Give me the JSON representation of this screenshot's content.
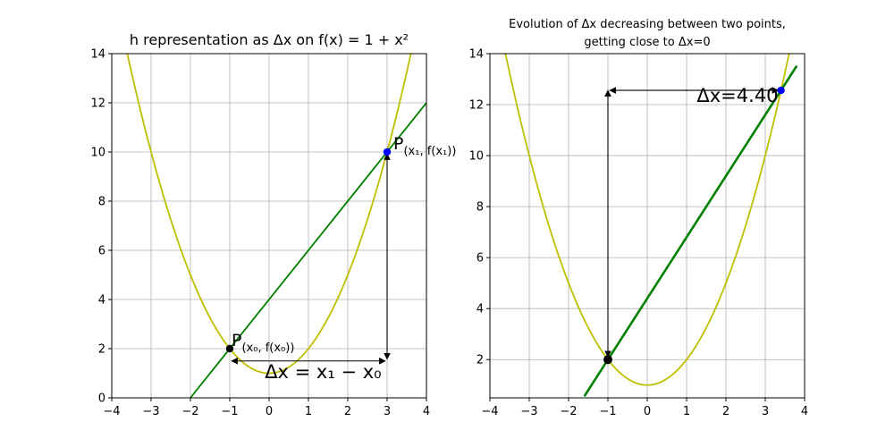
{
  "chart_data": [
    {
      "type": "line",
      "title": "h representation as Δx on f(x) = 1 + x²",
      "xlim": [
        -4,
        4
      ],
      "ylim": [
        0,
        14
      ],
      "xticks": [
        -4,
        -3,
        -2,
        -1,
        0,
        1,
        2,
        3,
        4
      ],
      "yticks": [
        0,
        2,
        4,
        6,
        8,
        10,
        12,
        14
      ],
      "grid": true,
      "series": [
        {
          "name": "",
          "kind": "function",
          "expr": "1 + x^2",
          "color": "#bfbf00"
        },
        {
          "name": "",
          "kind": "secant",
          "x": [
            -2,
            4
          ],
          "y": [
            0,
            12
          ],
          "color": "#008000"
        }
      ],
      "points": [
        {
          "x": -1,
          "y": 2,
          "color": "#000000",
          "label": "P",
          "sub": "(x₀, f(x₀))"
        },
        {
          "x": 3,
          "y": 10,
          "color": "#0000ff",
          "label": "P",
          "sub": "(x₁, f(x₁))"
        }
      ],
      "annotations": [
        {
          "text": "Δx = x₁ − x₀",
          "x": 0.8,
          "y": 0.8
        }
      ]
    },
    {
      "type": "line",
      "title": "Evolution of Δx decreasing between two points,",
      "subtitle": "getting close to Δx=0",
      "xlim": [
        -4,
        4
      ],
      "ylim": [
        0.5,
        14
      ],
      "xticks": [
        -4,
        -3,
        -2,
        -1,
        0,
        1,
        2,
        3,
        4
      ],
      "yticks": [
        2,
        4,
        6,
        8,
        10,
        12,
        14
      ],
      "grid": true,
      "series": [
        {
          "name": "",
          "kind": "function",
          "expr": "1 + x^2",
          "color": "#bfbf00"
        },
        {
          "name": "",
          "kind": "secant",
          "x": [
            -1.6,
            3.8
          ],
          "y": [
            0.56,
            13.52
          ],
          "color": "#008000"
        }
      ],
      "points": [
        {
          "x": -1,
          "y": 2,
          "color": "#000000"
        },
        {
          "x": 3.4,
          "y": 12.56,
          "color": "#0000ff"
        }
      ],
      "annotations": [
        {
          "text": "Δx=4.40",
          "x": 1.6,
          "y": 12.1
        }
      ]
    }
  ]
}
